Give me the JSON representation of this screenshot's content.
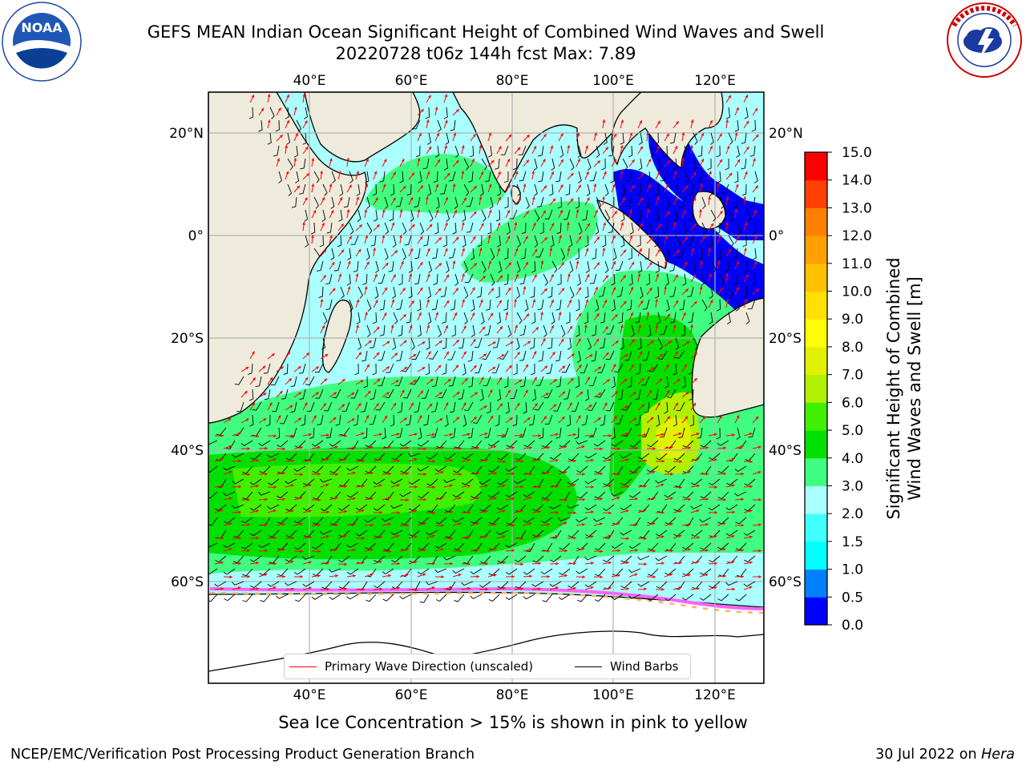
{
  "title": {
    "line1": "GEFS MEAN Indian Ocean Significant Height of Combined Wind Waves and Swell",
    "line2": "20220728 t06z 144h fcst   Max: 7.89"
  },
  "logos": {
    "left": {
      "icon": "noaa-logo",
      "text": "NOAA",
      "ring_text": "NATIONAL OCEANIC AND ATMOSPHERIC ADMINISTRATION · U.S. DEPARTMENT OF COMMERCE"
    },
    "right": {
      "icon": "nws-logo",
      "ring_text": "NATIONAL WEATHER SERVICE"
    }
  },
  "map": {
    "lon_labels": [
      "40°E",
      "60°E",
      "80°E",
      "100°E",
      "120°E"
    ],
    "lat_labels": [
      "20°N",
      "0°",
      "20°S",
      "40°S",
      "60°S"
    ],
    "land_color": "#efebdc",
    "ocean_base_color": "#aaffff",
    "arrow_color": "#ff0000",
    "barb_color": "#000000"
  },
  "colorbar": {
    "label_line1": "Significant Height of Combined",
    "label_line2": "Wind Waves and Swell [m]",
    "ticks": [
      "0.0",
      "0.5",
      "1.0",
      "1.5",
      "2.0",
      "3.0",
      "4.0",
      "5.0",
      "6.0",
      "7.0",
      "8.0",
      "9.0",
      "10.0",
      "11.0",
      "12.0",
      "13.0",
      "14.0",
      "15.0"
    ],
    "colors": [
      "#0000ff",
      "#0080ff",
      "#00ffff",
      "#40ffff",
      "#aaffff",
      "#40ff80",
      "#00e000",
      "#40f000",
      "#b0f000",
      "#e0f000",
      "#ffff00",
      "#ffe000",
      "#ffc000",
      "#ffa000",
      "#ff8000",
      "#ff4000",
      "#ff0000"
    ]
  },
  "legend": {
    "wave_direction": "Primary Wave Direction (unscaled)",
    "wind_barbs": "Wind Barbs"
  },
  "footnote": "Sea Ice Concentration > 15% is shown in pink to yellow",
  "credit": "NCEP/EMC/Verification Post Processing Product Generation Branch",
  "date_line": {
    "date": "30 Jul 2022 on",
    "host": "Hera"
  }
}
